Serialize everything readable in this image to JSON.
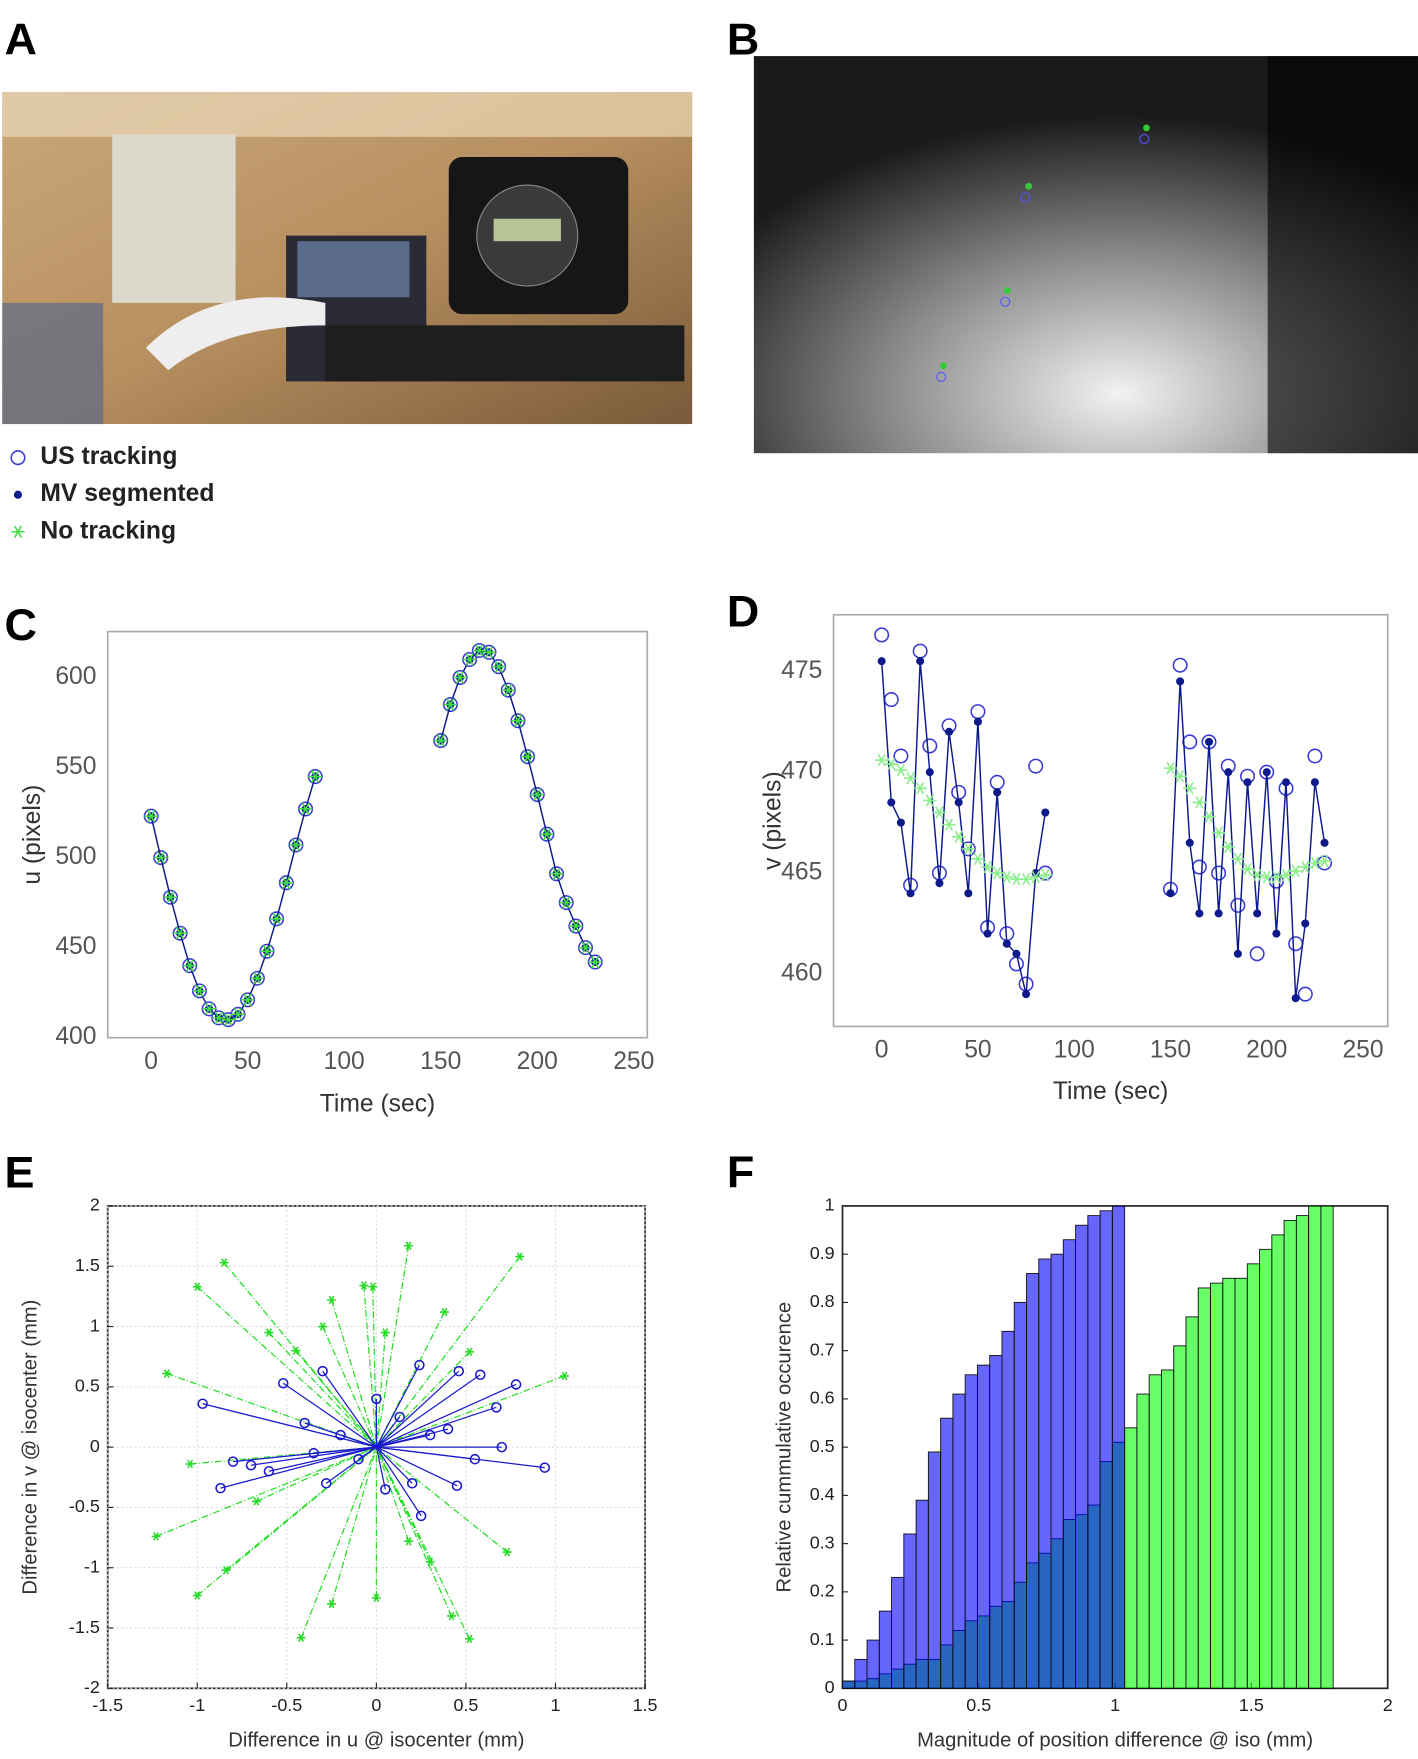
{
  "panel_labels": [
    "A",
    "B",
    "C",
    "D",
    "E",
    "F"
  ],
  "chart_data": [
    {
      "type": "line",
      "xlabel": "Time (sec)",
      "ylabel": "u (pixels)",
      "x": [
        0,
        5,
        10,
        15,
        20,
        25,
        30,
        35,
        40,
        45,
        50,
        55,
        60,
        65,
        70,
        75,
        80,
        85,
        null,
        150,
        155,
        160,
        165,
        170,
        175,
        180,
        185,
        190,
        195,
        200,
        205,
        210,
        215,
        220,
        225,
        230
      ],
      "series": [
        {
          "name": "US tracking",
          "color": "#3a3ad6",
          "marker": "circle-open",
          "values": [
            523,
            500,
            478,
            458,
            440,
            426,
            416,
            411,
            410,
            413,
            421,
            433,
            448,
            466,
            486,
            507,
            527,
            545,
            null,
            565,
            585,
            600,
            610,
            615,
            614,
            606,
            593,
            576,
            556,
            535,
            513,
            491,
            475,
            462,
            450,
            442
          ]
        },
        {
          "name": "MV segmented",
          "color": "#0c1a8c",
          "marker": "dot",
          "line": true,
          "values": [
            523,
            500,
            478,
            458,
            440,
            426,
            416,
            411,
            410,
            413,
            421,
            433,
            448,
            466,
            486,
            507,
            527,
            545,
            null,
            565,
            585,
            600,
            610,
            615,
            614,
            606,
            593,
            576,
            556,
            535,
            513,
            491,
            475,
            462,
            450,
            442
          ]
        },
        {
          "name": "No tracking",
          "color": "#44dd44",
          "marker": "star",
          "values": [
            523,
            500,
            478,
            458,
            440,
            426,
            416,
            411,
            410,
            413,
            421,
            433,
            448,
            466,
            486,
            507,
            527,
            545,
            null,
            565,
            585,
            600,
            610,
            615,
            614,
            606,
            593,
            576,
            556,
            535,
            513,
            491,
            475,
            462,
            450,
            442
          ]
        }
      ],
      "xlim": [
        -22.5,
        257
      ],
      "xticks": [
        0,
        50,
        100,
        150,
        200,
        250
      ],
      "ylim": [
        400,
        625.5
      ],
      "yticks": [
        400,
        450,
        500,
        550,
        600
      ]
    },
    {
      "type": "line",
      "xlabel": "Time (sec)",
      "ylabel": "v (pixels)",
      "x": [
        0,
        5,
        10,
        15,
        20,
        25,
        30,
        35,
        40,
        45,
        50,
        55,
        60,
        65,
        70,
        75,
        80,
        85,
        null,
        150,
        155,
        160,
        165,
        170,
        175,
        180,
        185,
        190,
        195,
        200,
        205,
        210,
        215,
        220,
        225,
        230
      ],
      "series": [
        {
          "color": "#3a3ad6",
          "marker": "circle-open",
          "values": [
            476.8,
            473.6,
            470.8,
            464.4,
            476,
            471.3,
            465,
            472.3,
            469,
            466.2,
            473,
            462.3,
            469.5,
            462,
            460.5,
            459.5,
            470.3,
            465,
            null,
            464.2,
            475.3,
            471.5,
            465.3,
            471.5,
            465,
            470.3,
            463.4,
            469.8,
            461,
            470,
            464.6,
            469.2,
            461.5,
            459,
            470.8,
            465.5
          ]
        },
        {
          "color": "#0c1a8c",
          "marker": "dot",
          "line": true,
          "values": [
            475.5,
            468.5,
            467.5,
            464,
            475.5,
            470,
            464.5,
            472,
            468.5,
            464,
            472.5,
            462,
            469,
            461.5,
            461,
            459,
            465,
            468,
            null,
            464,
            474.5,
            466.5,
            463,
            471.5,
            463,
            470,
            461,
            469.5,
            463,
            470,
            462,
            469.5,
            458.8,
            462.5,
            469.5,
            466.5
          ]
        },
        {
          "color": "#88ee88",
          "marker": "star",
          "values": [
            470.6,
            470.4,
            470.1,
            469.7,
            469.2,
            468.6,
            468,
            467.4,
            466.8,
            466.2,
            465.7,
            465.3,
            465,
            464.8,
            464.7,
            464.7,
            464.8,
            464.9,
            null,
            470.2,
            469.8,
            469.2,
            468.5,
            467.8,
            467,
            466.3,
            465.7,
            465.2,
            464.9,
            464.8,
            464.8,
            464.9,
            465.1,
            465.3,
            465.5,
            465.6
          ]
        }
      ],
      "xlim": [
        -25,
        262.8
      ],
      "xticks": [
        0,
        50,
        100,
        150,
        200,
        250
      ],
      "ylim": [
        457.4,
        477.8
      ],
      "yticks": [
        460,
        465,
        470,
        475
      ]
    },
    {
      "type": "vector",
      "xlabel": "Difference in u @ isocenter (mm)",
      "ylabel": "Difference in v @ isocenter (mm)",
      "grid": true,
      "series": [
        {
          "color": "#22dd22",
          "marker": "star",
          "dashed": true,
          "x": [
            -1.0,
            -1.17,
            -1.04,
            -1.23,
            -1.0,
            -0.85,
            -0.84,
            -0.6,
            -0.67,
            -0.42,
            -0.3,
            -0.25,
            -0.07,
            -0.02,
            0.18,
            0.38,
            0.52,
            0.8,
            1.05,
            0.73,
            0.52,
            0.42,
            0.3,
            0.0,
            -0.25,
            0.18,
            0.05,
            -0.45
          ],
          "values": [
            1.33,
            0.61,
            -0.14,
            -0.74,
            -1.23,
            1.53,
            -1.02,
            0.95,
            -0.45,
            -1.58,
            1.0,
            1.22,
            1.34,
            1.33,
            1.67,
            1.12,
            0.79,
            1.58,
            0.59,
            -0.87,
            -1.59,
            -1.4,
            -0.95,
            -1.25,
            -1.3,
            -0.78,
            0.95,
            0.8
          ]
        },
        {
          "color": "#1a1acc",
          "marker": "circle-open",
          "x": [
            -0.97,
            -0.87,
            -0.8,
            -0.7,
            -0.6,
            -0.52,
            -0.4,
            -0.35,
            -0.3,
            -0.28,
            -0.2,
            -0.1,
            0,
            0.05,
            0.13,
            0.2,
            0.24,
            0.3,
            0.4,
            0.45,
            0.46,
            0.58,
            0.67,
            0.78,
            0.94,
            0.55,
            0.7,
            0.25
          ],
          "values": [
            0.36,
            -0.34,
            -0.12,
            -0.15,
            -0.2,
            0.53,
            0.2,
            -0.05,
            0.63,
            -0.3,
            0.1,
            -0.1,
            0.4,
            -0.35,
            0.25,
            -0.3,
            0.68,
            0.1,
            0.15,
            -0.32,
            0.63,
            0.6,
            0.33,
            0.52,
            -0.17,
            -0.1,
            0,
            -0.57
          ]
        }
      ],
      "xlim": [
        -1.5,
        1.5
      ],
      "xticks": [
        -1.5,
        -1,
        -0.5,
        0,
        0.5,
        1,
        1.5
      ],
      "ylim": [
        -2,
        2
      ],
      "yticks": [
        -2,
        -1.5,
        -1,
        -0.5,
        0,
        0.5,
        1,
        1.5,
        2
      ]
    },
    {
      "type": "histogram",
      "xlabel": "Magnitude of position difference @ iso (mm)",
      "ylabel": "Relative cummulative occurence",
      "bins": [
        0,
        0.045,
        0.09,
        0.135,
        0.18,
        0.225,
        0.27,
        0.315,
        0.36,
        0.405,
        0.45,
        0.495,
        0.54,
        0.585,
        0.63,
        0.675,
        0.72,
        0.765,
        0.81,
        0.855,
        0.9,
        0.945,
        0.99,
        1.035,
        1.08,
        1.125,
        1.17,
        1.215,
        1.26,
        1.305,
        1.35,
        1.395,
        1.44,
        1.485,
        1.53,
        1.575,
        1.62,
        1.665,
        1.71,
        1.755,
        1.8
      ],
      "series": [
        {
          "color": "#00ff00",
          "alpha": 0.6,
          "values": [
            0.015,
            0.015,
            0.02,
            0.03,
            0.04,
            0.05,
            0.06,
            0.06,
            0.09,
            0.12,
            0.14,
            0.15,
            0.17,
            0.18,
            0.22,
            0.26,
            0.28,
            0.31,
            0.35,
            0.36,
            0.38,
            0.47,
            0.51,
            0.54,
            0.61,
            0.65,
            0.66,
            0.71,
            0.77,
            0.83,
            0.84,
            0.85,
            0.85,
            0.88,
            0.91,
            0.94,
            0.97,
            0.98,
            1.0,
            1.0
          ]
        },
        {
          "color": "#0000ff",
          "alpha": 0.6,
          "values": [
            0.015,
            0.06,
            0.1,
            0.16,
            0.23,
            0.32,
            0.39,
            0.49,
            0.56,
            0.61,
            0.65,
            0.67,
            0.69,
            0.74,
            0.8,
            0.86,
            0.89,
            0.9,
            0.93,
            0.96,
            0.98,
            0.99,
            1.0,
            null,
            null,
            null,
            null,
            null,
            null,
            null,
            null,
            null,
            null,
            null,
            null,
            null,
            null,
            null,
            null,
            null
          ]
        }
      ],
      "xlim": [
        0,
        2
      ],
      "xticks": [
        0,
        0.5,
        1,
        1.5,
        2
      ],
      "ylim": [
        0,
        1
      ],
      "yticks": [
        0,
        0.1,
        0.2,
        0.3,
        0.4,
        0.5,
        0.6,
        0.7,
        0.8,
        0.9,
        1
      ]
    }
  ]
}
